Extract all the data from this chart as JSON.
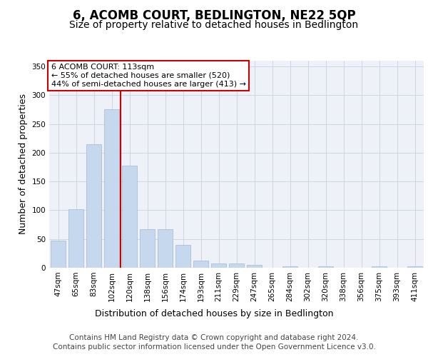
{
  "title": "6, ACOMB COURT, BEDLINGTON, NE22 5QP",
  "subtitle": "Size of property relative to detached houses in Bedlington",
  "xlabel": "Distribution of detached houses by size in Bedlington",
  "ylabel": "Number of detached properties",
  "categories": [
    "47sqm",
    "65sqm",
    "83sqm",
    "102sqm",
    "120sqm",
    "138sqm",
    "156sqm",
    "174sqm",
    "193sqm",
    "211sqm",
    "229sqm",
    "247sqm",
    "265sqm",
    "284sqm",
    "302sqm",
    "320sqm",
    "338sqm",
    "356sqm",
    "375sqm",
    "393sqm",
    "411sqm"
  ],
  "values": [
    47,
    102,
    215,
    275,
    178,
    67,
    67,
    40,
    13,
    8,
    8,
    5,
    0,
    2,
    0,
    2,
    0,
    0,
    2,
    0,
    2
  ],
  "bar_color": "#c5d8ed",
  "bar_edge_color": "#a0b8d8",
  "vline_bin_index": 3.5,
  "vline_color": "#cc0000",
  "ylim": [
    0,
    360
  ],
  "yticks": [
    0,
    50,
    100,
    150,
    200,
    250,
    300,
    350
  ],
  "annotation_text": "6 ACOMB COURT: 113sqm\n← 55% of detached houses are smaller (520)\n44% of semi-detached houses are larger (413) →",
  "annotation_box_color": "#ffffff",
  "annotation_box_edge": "#cc0000",
  "footer_line1": "Contains HM Land Registry data © Crown copyright and database right 2024.",
  "footer_line2": "Contains public sector information licensed under the Open Government Licence v3.0.",
  "plot_bg_color": "#eef2f8",
  "fig_bg_color": "#ffffff",
  "title_fontsize": 12,
  "subtitle_fontsize": 10,
  "axis_label_fontsize": 9,
  "tick_fontsize": 7.5,
  "annotation_fontsize": 8,
  "footer_fontsize": 7.5
}
